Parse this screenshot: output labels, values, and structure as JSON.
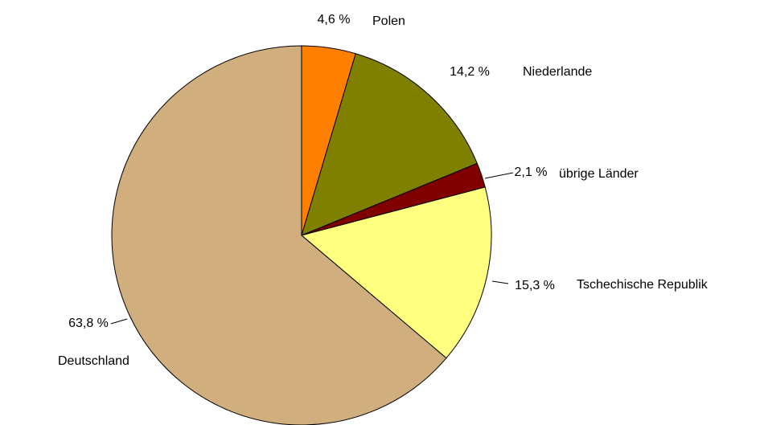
{
  "chart_data": {
    "type": "pie",
    "categories": [
      "Polen",
      "Niederlande",
      "übrige Länder",
      "Tschechische Republik",
      "Deutschland"
    ],
    "values": [
      4.6,
      14.2,
      2.1,
      15.3,
      63.8
    ],
    "value_labels": [
      "4,6 %",
      "14,2 %",
      "2,1 %",
      "15,3 %",
      "63,8 %"
    ],
    "colors": [
      "#ff8000",
      "#808000",
      "#800000",
      "#ffff80",
      "#d0ae7e"
    ]
  }
}
